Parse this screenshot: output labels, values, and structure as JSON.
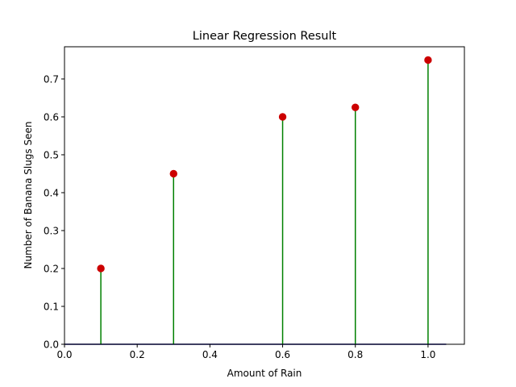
{
  "chart_data": {
    "type": "stem",
    "title": "Linear Regression Result",
    "xlabel": "Amount of Rain",
    "ylabel": "Number of Banana Slugs Seen",
    "xlim": [
      0.0,
      1.1
    ],
    "ylim": [
      0.0,
      0.785
    ],
    "x_ticks": [
      "0.0",
      "0.2",
      "0.4",
      "0.6",
      "0.8",
      "1.0"
    ],
    "y_ticks": [
      "0.0",
      "0.1",
      "0.2",
      "0.3",
      "0.4",
      "0.5",
      "0.6",
      "0.7"
    ],
    "x": [
      0.1,
      0.3,
      0.6,
      0.8,
      1.0
    ],
    "y": [
      0.2,
      0.45,
      0.6,
      0.625,
      0.75
    ],
    "baseline": {
      "value": 0.0,
      "x_range": [
        0.0,
        1.05
      ]
    },
    "grid": false,
    "colors": {
      "stem": "#008000",
      "marker": "#cc0000",
      "baseline": "#00008b",
      "axes": "#000000"
    }
  }
}
